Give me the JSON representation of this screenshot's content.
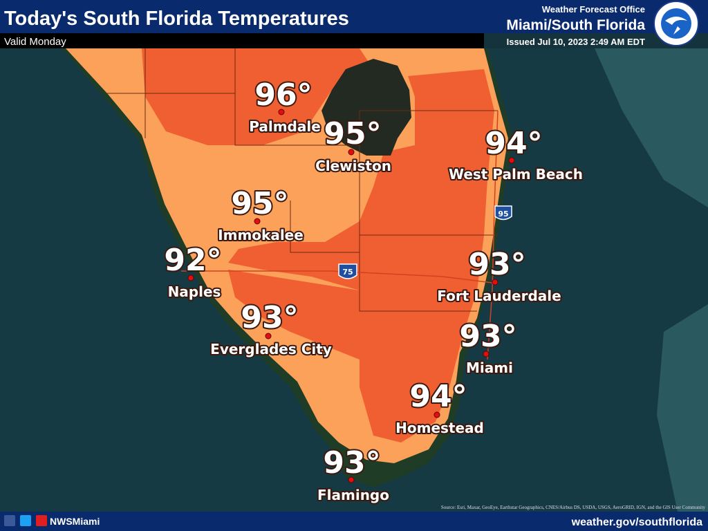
{
  "header": {
    "title": "Today's South Florida Temperatures",
    "subtitle": "Valid Monday"
  },
  "office": {
    "line1": "Weather Forecast Office",
    "line2": "Miami/South Florida",
    "issued": "Issued Jul 10, 2023 2:49 AM EDT"
  },
  "highways": [
    "75",
    "95"
  ],
  "cities": [
    {
      "temp": "96°",
      "name": "Palmdale"
    },
    {
      "temp": "95°",
      "name": "Clewiston"
    },
    {
      "temp": "94°",
      "name": "West Palm Beach"
    },
    {
      "temp": "95°",
      "name": "Immokalee"
    },
    {
      "temp": "92°",
      "name": "Naples"
    },
    {
      "temp": "93°",
      "name": "Fort Lauderdale"
    },
    {
      "temp": "93°",
      "name": "Everglades City"
    },
    {
      "temp": "93°",
      "name": "Miami"
    },
    {
      "temp": "94°",
      "name": "Homestead"
    },
    {
      "temp": "93°",
      "name": "Flamingo"
    }
  ],
  "footer": {
    "handle": "NWSMiami",
    "url": "weather.gov/southflorida",
    "source": "Source: Esri, Maxar, GeoEye, Earthstar Geographics, CNES/Airbus DS, USDA, USGS, AeroGRID, IGN, and the GIS User Community"
  }
}
